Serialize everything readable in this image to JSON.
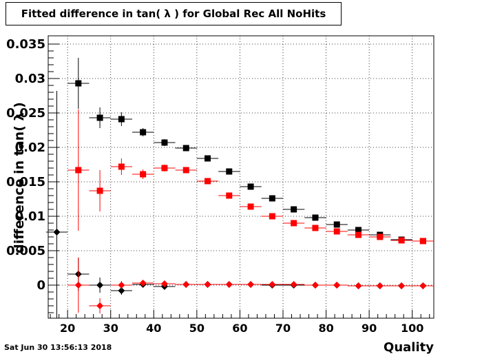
{
  "footer": {
    "timestamp": "Sat Jun 30 13:56:13 2018"
  },
  "chart_data": {
    "type": "scatter",
    "title": "Fitted difference in tan( λ ) for Global Rec All NoHits",
    "xlabel": "Quality",
    "ylabel": "difference in tan( λ )",
    "xlim": [
      15.5,
      105
    ],
    "ylim": [
      -0.0048,
      0.0362
    ],
    "grid": true,
    "x_ticks": [
      20,
      30,
      40,
      50,
      60,
      70,
      80,
      90,
      100
    ],
    "y_ticks": [
      0,
      0.005,
      0.01,
      0.015,
      0.02,
      0.025,
      0.03,
      0.035
    ],
    "y_tick_labels": [
      "0",
      "0.005",
      "0.01",
      "0.015",
      "0.02",
      "0.025",
      "0.03",
      "0.035"
    ],
    "series": [
      {
        "marker": "square",
        "color": "#000000",
        "x": [
          22.5,
          27.5,
          32.5,
          37.5,
          42.5,
          47.5,
          52.5,
          57.5,
          62.5,
          67.5,
          72.5,
          77.5,
          82.5,
          87.5,
          92.5,
          97.5,
          102.5
        ],
        "y": [
          0.0293,
          0.0243,
          0.0241,
          0.0222,
          0.0207,
          0.0199,
          0.0184,
          0.0165,
          0.0143,
          0.0126,
          0.011,
          0.0098,
          0.0088,
          0.008,
          0.0073,
          0.0066,
          0.0064
        ],
        "yerr": [
          0.0037,
          0.0015,
          0.001,
          0.0006,
          0.0005,
          0.0004,
          0.0003,
          0.0003,
          0.0003,
          0.0003,
          0.0003,
          0.0003,
          0.0003,
          0.0003,
          0.0003,
          0.0003,
          0.0003
        ]
      },
      {
        "marker": "square",
        "color": "#ff0000",
        "x": [
          22.5,
          27.5,
          32.5,
          37.5,
          42.5,
          47.5,
          52.5,
          57.5,
          62.5,
          67.5,
          72.5,
          77.5,
          82.5,
          87.5,
          92.5,
          97.5,
          102.5
        ],
        "y": [
          0.0167,
          0.0137,
          0.0172,
          0.0161,
          0.017,
          0.0167,
          0.0151,
          0.013,
          0.0114,
          0.01,
          0.009,
          0.0083,
          0.0078,
          0.0073,
          0.007,
          0.0065,
          0.0064
        ],
        "yerr": [
          0.0088,
          0.003,
          0.0012,
          0.0007,
          0.0005,
          0.0004,
          0.0003,
          0.0003,
          0.0003,
          0.0003,
          0.0003,
          0.0003,
          0.0003,
          0.0003,
          0.0003,
          0.0003,
          0.0003
        ]
      },
      {
        "marker": "diamond",
        "color": "#000000",
        "x": [
          17.5,
          22.5,
          27.5,
          32.5,
          37.5,
          42.5,
          47.5,
          52.5,
          57.5,
          62.5,
          67.5,
          72.5,
          77.5,
          82.5,
          87.5,
          92.5,
          97.5,
          102.5
        ],
        "y": [
          0.0077,
          0.0016,
          0.0,
          -0.0008,
          0.0001,
          -0.0002,
          0.0001,
          0.0001,
          0.0001,
          0.0001,
          0.0,
          0.0,
          0.0,
          0.0,
          -0.0001,
          -0.0001,
          -0.0001,
          -0.0001
        ],
        "yerr": [
          0.0205,
          0.0024,
          0.0011,
          0.0006,
          0.0004,
          0.0003,
          0.0002,
          0.0002,
          0.0002,
          0.0002,
          0.0002,
          0.0002,
          0.0002,
          0.0002,
          0.0002,
          0.0002,
          0.0002,
          0.0002
        ]
      },
      {
        "marker": "diamond",
        "color": "#ff0000",
        "x": [
          22.5,
          27.5,
          32.5,
          37.5,
          42.5,
          47.5,
          52.5,
          57.5,
          62.5,
          67.5,
          72.5,
          77.5,
          82.5,
          87.5,
          92.5,
          97.5,
          102.5
        ],
        "y": [
          0.0,
          -0.003,
          0.0,
          0.0003,
          0.0002,
          0.0001,
          0.0001,
          0.0001,
          0.0001,
          0.0001,
          0.0001,
          0.0,
          0.0,
          -0.0001,
          -0.0001,
          -0.0001,
          -0.0001
        ],
        "yerr": [
          0.004,
          0.0011,
          0.0006,
          0.0003,
          0.0002,
          0.0002,
          0.0002,
          0.0002,
          0.0002,
          0.0002,
          0.0002,
          0.0002,
          0.0002,
          0.0002,
          0.0002,
          0.0002,
          0.0002
        ]
      }
    ]
  }
}
